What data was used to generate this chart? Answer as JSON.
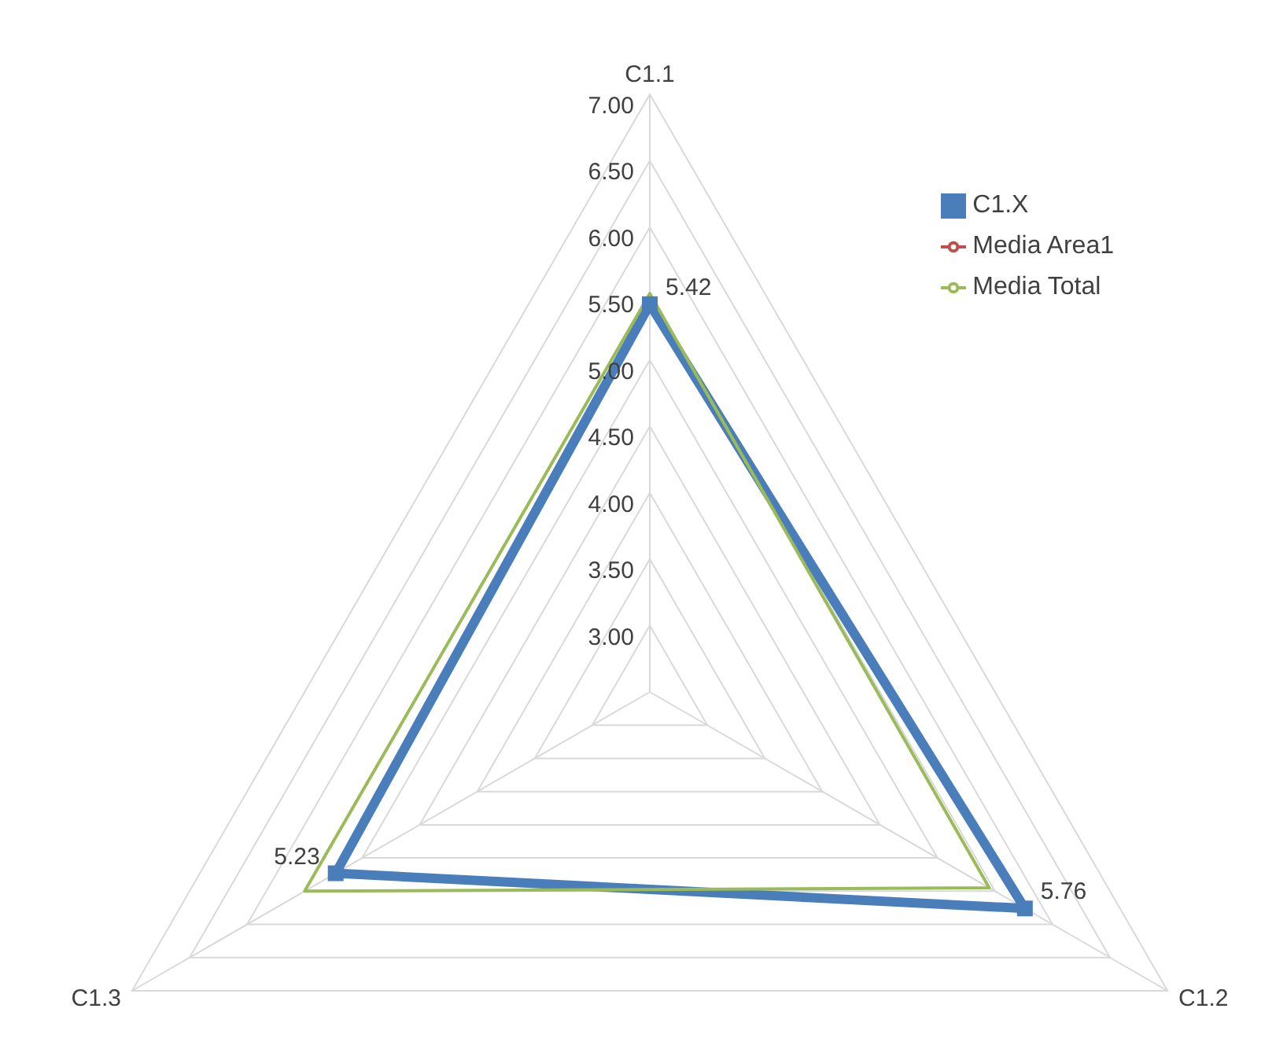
{
  "chart_data": {
    "type": "radar",
    "categories": [
      "C1.1",
      "C1.2",
      "C1.3"
    ],
    "series": [
      {
        "name": "C1.X",
        "color": "#4a7ebb",
        "marker": "square",
        "values": [
          5.42,
          5.76,
          5.23
        ],
        "value_labels": [
          "5.42",
          "5.76",
          "5.23"
        ]
      },
      {
        "name": "Media Area1",
        "color": "#c0504d",
        "marker": "none",
        "values": [
          null,
          null,
          null
        ]
      },
      {
        "name": "Media Total",
        "color": "#9bbb59",
        "marker": "none",
        "values": [
          5.5,
          5.45,
          5.5
        ]
      }
    ],
    "ylim": [
      2.5,
      7
    ],
    "yticks": [
      {
        "value": 3,
        "label": "3.00"
      },
      {
        "value": 3.5,
        "label": "3.50"
      },
      {
        "value": 4,
        "label": "4.00"
      },
      {
        "value": 4.5,
        "label": "4.50"
      },
      {
        "value": 5,
        "label": "5.00"
      },
      {
        "value": 5.5,
        "label": "5.50"
      },
      {
        "value": 6,
        "label": "6.00"
      },
      {
        "value": 6.5,
        "label": "6.50"
      },
      {
        "value": 7,
        "label": "7.00"
      }
    ],
    "grid": true,
    "legend": "top right"
  }
}
